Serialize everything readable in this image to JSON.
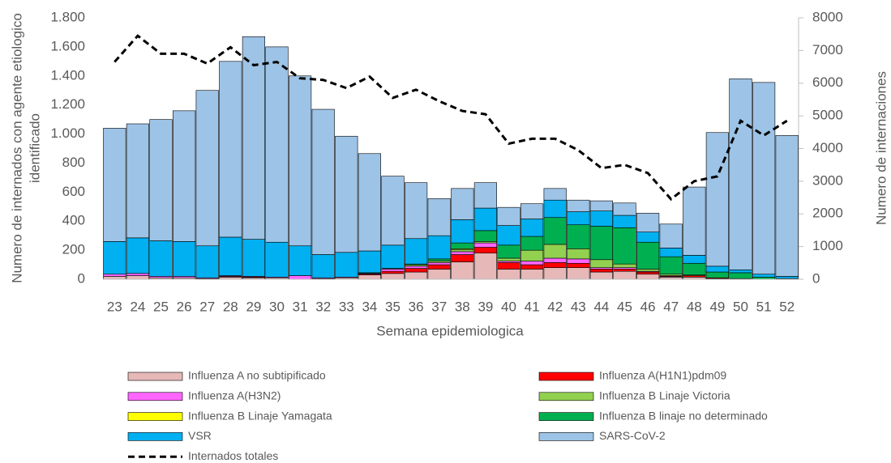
{
  "chart_data": {
    "type": "bar",
    "stacked": true,
    "x_label": "Semana epidemiologica",
    "y_label": [
      "Numero de internados con agente etiologico",
      "identificado"
    ],
    "y2_label": "Numero de internaciones",
    "categories": [
      "23",
      "24",
      "25",
      "26",
      "27",
      "28",
      "29",
      "30",
      "31",
      "32",
      "33",
      "34",
      "35",
      "36",
      "37",
      "38",
      "39",
      "40",
      "41",
      "42",
      "43",
      "44",
      "45",
      "46",
      "47",
      "48",
      "49",
      "50",
      "51",
      "52"
    ],
    "ylim": [
      0,
      1800
    ],
    "yticks": [
      0,
      200,
      400,
      600,
      800,
      {
        "value": 1000,
        "label": "1.000"
      },
      {
        "value": 1200,
        "label": "1.200"
      },
      {
        "value": 1400,
        "label": "1.400"
      },
      {
        "value": 1600,
        "label": "1.600"
      },
      {
        "value": 1800,
        "label": "1.800"
      }
    ],
    "y2lim": [
      0,
      8000
    ],
    "y2ticks": [
      0,
      1000,
      2000,
      3000,
      4000,
      5000,
      6000,
      7000,
      8000
    ],
    "series": [
      {
        "name": "Influenza A no subtipificado",
        "color": "#e6b8b7",
        "values": [
          20,
          25,
          10,
          10,
          5,
          15,
          10,
          10,
          0,
          5,
          10,
          30,
          40,
          50,
          70,
          120,
          180,
          70,
          70,
          80,
          80,
          50,
          55,
          35,
          15,
          15,
          5,
          5,
          0,
          0
        ]
      },
      {
        "name": "Influenza A(H1N1)pdm09",
        "color": "#ff0000",
        "values": [
          0,
          0,
          0,
          0,
          0,
          5,
          5,
          0,
          0,
          0,
          0,
          5,
          15,
          25,
          30,
          50,
          40,
          45,
          30,
          35,
          30,
          20,
          15,
          15,
          5,
          10,
          5,
          0,
          0,
          0
        ]
      },
      {
        "name": "Influenza A(H3N2)",
        "color": "#ff66ff",
        "values": [
          15,
          15,
          10,
          10,
          5,
          5,
          5,
          5,
          25,
          5,
          5,
          5,
          15,
          15,
          15,
          20,
          30,
          10,
          25,
          30,
          30,
          10,
          10,
          5,
          5,
          0,
          0,
          0,
          0,
          0
        ]
      },
      {
        "name": "Influenza B Linaje Victoria",
        "color": "#92d050",
        "values": [
          0,
          0,
          0,
          0,
          0,
          0,
          0,
          0,
          0,
          0,
          0,
          0,
          5,
          10,
          10,
          15,
          10,
          20,
          75,
          95,
          70,
          55,
          25,
          15,
          10,
          5,
          0,
          0,
          0,
          0
        ]
      },
      {
        "name": "Influenza B Linaje Yamagata",
        "color": "#ffff00",
        "values": [
          0,
          0,
          0,
          0,
          0,
          0,
          0,
          0,
          0,
          0,
          0,
          0,
          0,
          0,
          0,
          5,
          0,
          0,
          0,
          0,
          0,
          0,
          0,
          0,
          0,
          0,
          0,
          0,
          0,
          0
        ]
      },
      {
        "name": "Influenza B linaje no determinado",
        "color": "#00b050",
        "values": [
          0,
          0,
          0,
          0,
          0,
          0,
          0,
          0,
          0,
          0,
          0,
          5,
          0,
          5,
          15,
          40,
          75,
          90,
          95,
          185,
          165,
          230,
          250,
          185,
          120,
          80,
          40,
          40,
          15,
          5
        ]
      },
      {
        "name": "VSR",
        "color": "#00b0f0",
        "values": [
          225,
          245,
          245,
          240,
          220,
          265,
          255,
          240,
          205,
          160,
          170,
          150,
          160,
          175,
          160,
          160,
          155,
          135,
          120,
          120,
          90,
          105,
          85,
          70,
          60,
          55,
          40,
          20,
          20,
          15
        ]
      },
      {
        "name": "SARS-CoV-2",
        "color": "#9dc3e6",
        "values": [
          780,
          785,
          835,
          900,
          1070,
          1210,
          1395,
          1345,
          1170,
          1000,
          800,
          670,
          475,
          385,
          255,
          215,
          175,
          125,
          105,
          80,
          80,
          70,
          85,
          130,
          165,
          470,
          920,
          1315,
          1320,
          970
        ]
      },
      {
        "name": "Internados totales",
        "color": "#000000",
        "axis": "y2",
        "dashed": true,
        "values": [
          6650,
          7450,
          6900,
          6900,
          6600,
          7100,
          6550,
          6650,
          6150,
          6100,
          5850,
          6200,
          5550,
          5800,
          5450,
          5150,
          5050,
          4150,
          4300,
          4300,
          3950,
          3400,
          3500,
          3250,
          2450,
          3000,
          3150,
          4850,
          4400,
          4850
        ]
      }
    ]
  }
}
